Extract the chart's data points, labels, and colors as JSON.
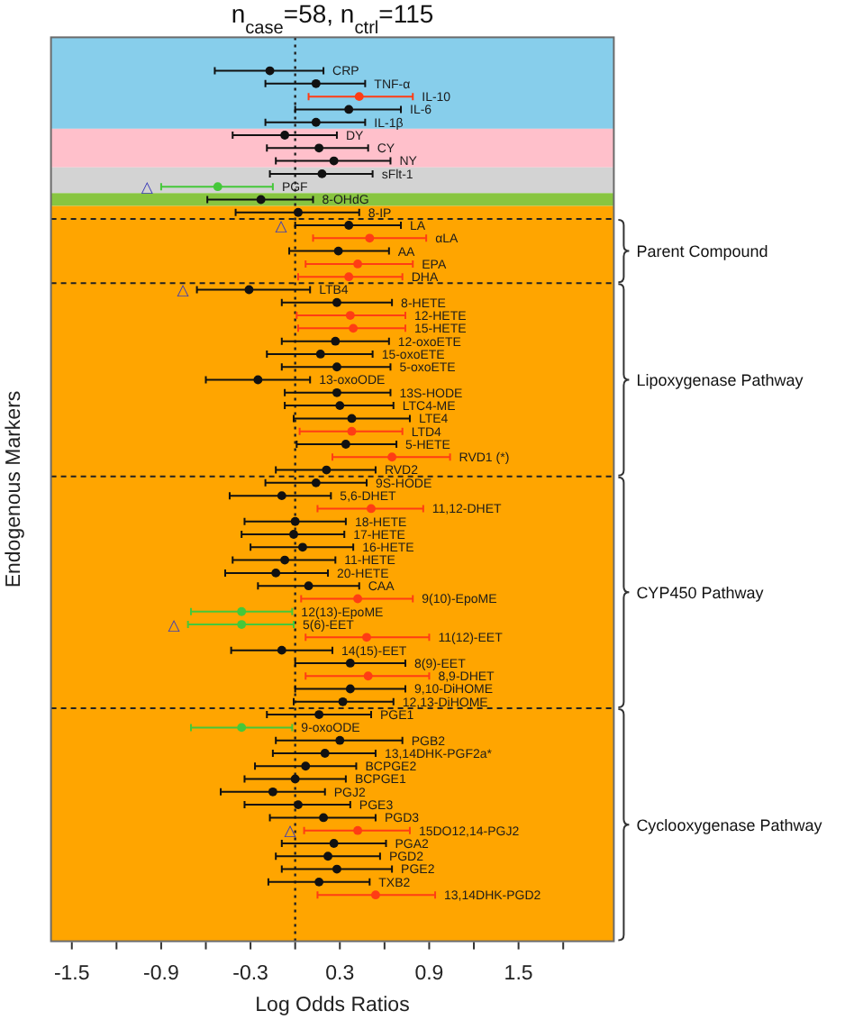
{
  "chart_data": {
    "type": "scatter",
    "orientation": "horizontal",
    "title": "n$_{case}$=58, n$_{ctrl}$=115",
    "xlabel": "Log Odds Ratios",
    "ylabel": "Endogenous Markers",
    "categories": [
      "CRP",
      "TNF-α",
      "IL-10",
      "IL-6",
      "IL-1β",
      "DY",
      "CY",
      "NY",
      "sFlt-1",
      "PGF",
      "8-OHdG",
      "8-IP",
      "LA",
      "αLA",
      "AA",
      "EPA",
      "DHA",
      "LTB4",
      "8-HETE",
      "12-HETE",
      "15-HETE",
      "12-oxoETE",
      "15-oxoETE",
      "5-oxoETE",
      "13-oxoODE",
      "13S-HODE",
      "LTC4-ME",
      "LTE4",
      "LTD4",
      "5-HETE",
      "RVD1 (*)",
      "RVD2",
      "9S-HODE",
      "5,6-DHET",
      "11,12-DHET",
      "18-HETE",
      "17-HETE",
      "16-HETE",
      "11-HETE",
      "20-HETE",
      "CAA",
      "9(10)-EpoME",
      "12(13)-EpoME",
      "5(6)-EET",
      "11(12)-EET",
      "14(15)-EET",
      "8(9)-EET",
      "8,9-DHET",
      "9,10-DiHOME",
      "12,13-DiHOME",
      "PGE1",
      "9-oxoODE",
      "PGB2",
      "13,14DHK-PGF2a*",
      "BCPGE2",
      "BCPGE1",
      "PGJ2",
      "PGE3",
      "PGD3",
      "15DO12,14-PGJ2",
      "PGA2",
      "PGD2",
      "PGE2",
      "TXB2",
      "13,14DHK-PGD2"
    ],
    "series": [
      {
        "marker": "circle",
        "values": [
          -0.17,
          0.14,
          0.43,
          0.36,
          0.14,
          -0.07,
          0.16,
          0.26,
          0.18,
          -0.52,
          -0.23,
          0.02,
          0.36,
          0.5,
          0.29,
          0.42,
          0.36,
          -0.31,
          0.28,
          0.37,
          0.39,
          0.27,
          0.17,
          0.28,
          -0.25,
          0.28,
          0.3,
          0.38,
          0.38,
          0.34,
          0.65,
          0.21,
          0.14,
          -0.09,
          0.51,
          0,
          -0.01,
          0.05,
          -0.07,
          -0.13,
          0.09,
          0.42,
          -0.36,
          -0.36,
          0.48,
          -0.09,
          0.37,
          0.49,
          0.37,
          0.32,
          0.16,
          -0.36,
          0.3,
          0.2,
          0.07,
          0,
          -0.15,
          0.02,
          0.19,
          0.42,
          0.26,
          0.22,
          0.28,
          0.16,
          0.54
        ],
        "errors": [
          [
            -0.54,
            0.19
          ],
          [
            -0.2,
            0.47
          ],
          [
            0.09,
            0.79
          ],
          [
            0,
            0.71
          ],
          [
            -0.2,
            0.47
          ],
          [
            -0.42,
            0.28
          ],
          [
            -0.19,
            0.49
          ],
          [
            -0.13,
            0.64
          ],
          [
            -0.17,
            0.52
          ],
          [
            -0.9,
            -0.15
          ],
          [
            -0.59,
            0.12
          ],
          [
            -0.4,
            0.43
          ],
          [
            0,
            0.71
          ],
          [
            0.12,
            0.88
          ],
          [
            -0.04,
            0.63
          ],
          [
            0.07,
            0.79
          ],
          [
            0.02,
            0.72
          ],
          [
            -0.66,
            0.1
          ],
          [
            -0.09,
            0.65
          ],
          [
            0.01,
            0.74
          ],
          [
            0.02,
            0.74
          ],
          [
            -0.09,
            0.63
          ],
          [
            -0.19,
            0.52
          ],
          [
            -0.09,
            0.64
          ],
          [
            -0.6,
            0.1
          ],
          [
            -0.07,
            0.64
          ],
          [
            -0.07,
            0.66
          ],
          [
            -0.01,
            0.77
          ],
          [
            0.03,
            0.72
          ],
          [
            0.01,
            0.68
          ],
          [
            0.25,
            1.04
          ],
          [
            -0.13,
            0.54
          ],
          [
            -0.2,
            0.48
          ],
          [
            -0.44,
            0.24
          ],
          [
            0.15,
            0.86
          ],
          [
            -0.34,
            0.34
          ],
          [
            -0.36,
            0.33
          ],
          [
            -0.3,
            0.39
          ],
          [
            -0.42,
            0.27
          ],
          [
            -0.47,
            0.22
          ],
          [
            -0.25,
            0.43
          ],
          [
            0.04,
            0.79
          ],
          [
            -0.7,
            -0.02
          ],
          [
            -0.72,
            -0.01
          ],
          [
            0.07,
            0.9
          ],
          [
            -0.43,
            0.25
          ],
          [
            0,
            0.74
          ],
          [
            0.07,
            0.9
          ],
          [
            0,
            0.74
          ],
          [
            -0.01,
            0.66
          ],
          [
            -0.19,
            0.51
          ],
          [
            -0.7,
            -0.02
          ],
          [
            -0.13,
            0.72
          ],
          [
            -0.15,
            0.54
          ],
          [
            -0.27,
            0.41
          ],
          [
            -0.34,
            0.34
          ],
          [
            -0.5,
            0.2
          ],
          [
            -0.34,
            0.37
          ],
          [
            -0.17,
            0.54
          ],
          [
            0.06,
            0.77
          ],
          [
            -0.09,
            0.61
          ],
          [
            -0.13,
            0.57
          ],
          [
            -0.09,
            0.65
          ],
          [
            -0.18,
            0.5
          ],
          [
            0.15,
            0.94
          ]
        ],
        "colors": [
          "#111111",
          "#111111",
          "#ff3d14",
          "#111111",
          "#111111",
          "#111111",
          "#111111",
          "#111111",
          "#111111",
          "#45c83a",
          "#111111",
          "#111111",
          "#111111",
          "#ff3d14",
          "#111111",
          "#ff3d14",
          "#ff3d14",
          "#111111",
          "#111111",
          "#ff3d14",
          "#ff3d14",
          "#111111",
          "#111111",
          "#111111",
          "#111111",
          "#111111",
          "#111111",
          "#111111",
          "#ff3d14",
          "#111111",
          "#ff3d14",
          "#111111",
          "#111111",
          "#111111",
          "#ff3d14",
          "#111111",
          "#111111",
          "#111111",
          "#111111",
          "#111111",
          "#111111",
          "#ff3d14",
          "#45c83a",
          "#45c83a",
          "#ff3d14",
          "#111111",
          "#111111",
          "#ff3d14",
          "#111111",
          "#111111",
          "#111111",
          "#45c83a",
          "#111111",
          "#111111",
          "#111111",
          "#111111",
          "#111111",
          "#111111",
          "#111111",
          "#ff3d14",
          "#111111",
          "#111111",
          "#111111",
          "#111111",
          "#ff3d14"
        ]
      }
    ],
    "xlim": [
      -1.64,
      2.14
    ],
    "xticks": [
      -1.5,
      -0.9,
      -0.3,
      0.3,
      0.9,
      1.5
    ],
    "tick_labels": "x",
    "ref_lines": [
      {
        "axis": "x",
        "value": 0,
        "line_style": "dotted"
      }
    ],
    "bands": [
      {
        "axis": "y",
        "from": "CRP",
        "to": "IL-1β",
        "color": "#87ceeb"
      },
      {
        "axis": "y",
        "from": "DY",
        "to": "NY",
        "color": "#ffc0cb"
      },
      {
        "axis": "y",
        "from": "sFlt-1",
        "to": "PGF",
        "color": "#d3d3d3"
      },
      {
        "axis": "y",
        "from": "8-OHdG",
        "to": "8-OHdG",
        "color": "#88c540"
      },
      {
        "axis": "y",
        "from": "8-IP",
        "to": "13,14DHK-PGD2",
        "color": "#ffa500"
      }
    ],
    "annotations": [
      "Parent Compound",
      "Lipoxygenase Pathway",
      "CYP450 Pathway",
      "Cyclooxygenase Pathway",
      {
        "text": "△",
        "x": -0.9,
        "y": "PGF"
      },
      {
        "text": "△",
        "x": 0,
        "y": "LA"
      },
      {
        "text": "△",
        "x": -0.66,
        "y": "LTB4"
      },
      {
        "text": "△",
        "x": -0.72,
        "y": "5(6)-EET"
      },
      {
        "text": "△",
        "x": 0.06,
        "y": "15DO12,14-PGJ2"
      }
    ]
  }
}
